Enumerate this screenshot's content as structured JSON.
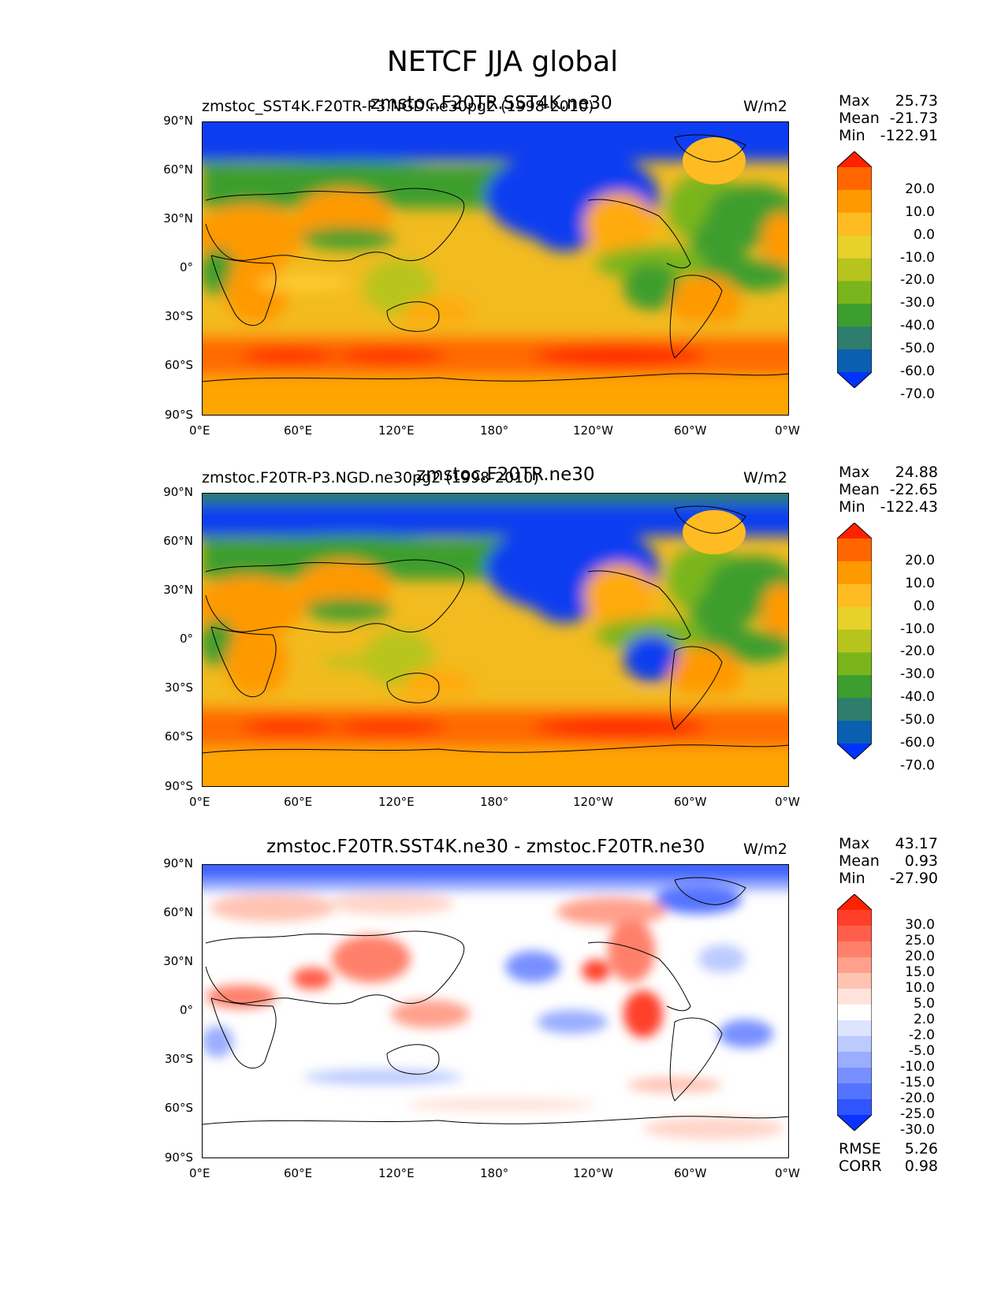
{
  "figure": {
    "title": "NETCF JJA global"
  },
  "panels": [
    {
      "left_title": "zmstoc_SST4K.F20TR-P3.NGD.ne30pg2 (1998-2010)",
      "center_title": "zmstoc.F20TR.SST4K.ne30",
      "units": "W/m2",
      "stats": {
        "max_label": "Max",
        "max": "25.73",
        "mean_label": "Mean",
        "mean": "-21.73",
        "min_label": "Min",
        "min": "-122.91"
      },
      "colorbar_labels": [
        "20.0",
        "10.0",
        "0.0",
        "-10.0",
        "-20.0",
        "-30.0",
        "-40.0",
        "-50.0",
        "-60.0",
        "-70.0"
      ],
      "colors": [
        "#ff2200",
        "#ff6600",
        "#ff9900",
        "#ffbb22",
        "#e8d12a",
        "#b8c41e",
        "#7ab51d",
        "#3c9e2f",
        "#2f7d6c",
        "#0a5fb0",
        "#0033ff"
      ]
    },
    {
      "left_title": "zmstoc.F20TR-P3.NGD.ne30pg2 (1998-2010)",
      "center_title": "zmstoc.F20TR.ne30",
      "units": "W/m2",
      "stats": {
        "max_label": "Max",
        "max": "24.88",
        "mean_label": "Mean",
        "mean": "-22.65",
        "min_label": "Min",
        "min": "-122.43"
      },
      "colorbar_labels": [
        "20.0",
        "10.0",
        "0.0",
        "-10.0",
        "-20.0",
        "-30.0",
        "-40.0",
        "-50.0",
        "-60.0",
        "-70.0"
      ],
      "colors": [
        "#ff2200",
        "#ff6600",
        "#ff9900",
        "#ffbb22",
        "#e8d12a",
        "#b8c41e",
        "#7ab51d",
        "#3c9e2f",
        "#2f7d6c",
        "#0a5fb0",
        "#0033ff"
      ]
    },
    {
      "left_title": "",
      "center_title": "zmstoc.F20TR.SST4K.ne30 - zmstoc.F20TR.ne30",
      "units": "W/m2",
      "stats": {
        "max_label": "Max",
        "max": "43.17",
        "mean_label": "Mean",
        "mean": "0.93",
        "min_label": "Min",
        "min": "-27.90",
        "rmse_label": "RMSE",
        "rmse": "5.26",
        "corr_label": "CORR",
        "corr": "0.98"
      },
      "colorbar_labels": [
        "30.0",
        "25.0",
        "20.0",
        "15.0",
        "10.0",
        "5.0",
        "2.0",
        "-2.0",
        "-5.0",
        "-10.0",
        "-15.0",
        "-20.0",
        "-25.0",
        "-30.0"
      ],
      "colors": [
        "#ff2200",
        "#ff3f2a",
        "#ff5f4a",
        "#ff806a",
        "#ffa08c",
        "#ffc3b2",
        "#ffe3da",
        "#ffffff",
        "#dde4ff",
        "#bccaff",
        "#9aadff",
        "#7890ff",
        "#5473ff",
        "#3055ff",
        "#0a33ff"
      ]
    }
  ],
  "axes": {
    "lat_ticks": [
      "90°N",
      "60°N",
      "30°N",
      "0°",
      "30°S",
      "60°S",
      "90°S"
    ],
    "lon_ticks": [
      "0°E",
      "60°E",
      "120°E",
      "180°",
      "120°W",
      "60°W",
      "0°W"
    ]
  },
  "chart_data": [
    {
      "type": "heatmap",
      "title": "zmstoc.F20TR.SST4K.ne30",
      "subtitle": "zmstoc_SST4K.F20TR-P3.NGD.ne30pg2 (1998-2010)",
      "units": "W/m2",
      "x_ticks": [
        "0°E",
        "60°E",
        "120°E",
        "180°",
        "120°W",
        "60°W",
        "0°W"
      ],
      "y_ticks": [
        "90°N",
        "60°N",
        "30°N",
        "0°",
        "30°S",
        "60°S",
        "90°S"
      ],
      "xlim": [
        0,
        360
      ],
      "ylim": [
        -90,
        90
      ],
      "contour_levels": [
        -70,
        -60,
        -50,
        -40,
        -30,
        -20,
        -10,
        0,
        10,
        20
      ],
      "max": 25.73,
      "mean": -21.73,
      "min": -122.91
    },
    {
      "type": "heatmap",
      "title": "zmstoc.F20TR.ne30",
      "subtitle": "zmstoc.F20TR-P3.NGD.ne30pg2 (1998-2010)",
      "units": "W/m2",
      "x_ticks": [
        "0°E",
        "60°E",
        "120°E",
        "180°",
        "120°W",
        "60°W",
        "0°W"
      ],
      "y_ticks": [
        "90°N",
        "60°N",
        "30°N",
        "0°",
        "30°S",
        "60°S",
        "90°S"
      ],
      "xlim": [
        0,
        360
      ],
      "ylim": [
        -90,
        90
      ],
      "contour_levels": [
        -70,
        -60,
        -50,
        -40,
        -30,
        -20,
        -10,
        0,
        10,
        20
      ],
      "max": 24.88,
      "mean": -22.65,
      "min": -122.43
    },
    {
      "type": "heatmap",
      "title": "zmstoc.F20TR.SST4K.ne30 - zmstoc.F20TR.ne30",
      "units": "W/m2",
      "x_ticks": [
        "0°E",
        "60°E",
        "120°E",
        "180°",
        "120°W",
        "60°W",
        "0°W"
      ],
      "y_ticks": [
        "90°N",
        "60°N",
        "30°N",
        "0°",
        "30°S",
        "60°S",
        "90°S"
      ],
      "xlim": [
        0,
        360
      ],
      "ylim": [
        -90,
        90
      ],
      "contour_levels": [
        -30,
        -25,
        -20,
        -15,
        -10,
        -5,
        -2,
        2,
        5,
        10,
        15,
        20,
        25,
        30
      ],
      "max": 43.17,
      "mean": 0.93,
      "min": -27.9,
      "rmse": 5.26,
      "corr": 0.98
    }
  ]
}
